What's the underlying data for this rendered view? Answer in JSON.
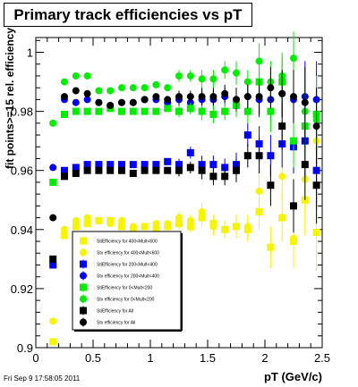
{
  "chart_data": {
    "type": "scatter",
    "title": "Primary track efficiencies vs pT",
    "xlabel": "pT (GeV/c)",
    "ylabel": "fit points>=15 rel. efficiency",
    "xlim": [
      0,
      2.5
    ],
    "ylim": [
      0.9,
      1.005
    ],
    "x_ticks": [
      0,
      0.5,
      1,
      1.5,
      2,
      2.5
    ],
    "y_ticks": [
      0.9,
      0.92,
      0.94,
      0.96,
      0.98,
      1
    ],
    "x_tick_labels": [
      "0",
      "0.5",
      "1",
      "1.5",
      "2",
      "2.5"
    ],
    "y_tick_labels": [
      "0.9",
      "0.92",
      "0.94",
      "0.96",
      "0.98",
      "1"
    ],
    "legend_position": "bottom-left",
    "grid": false,
    "footer": "Fri Sep  9 17:58:05 2011",
    "series": [
      {
        "name": "StiEfficiency for 400<Mult<600",
        "color": "#f5f500",
        "marker": "square",
        "x": [
          0.15,
          0.25,
          0.35,
          0.45,
          0.55,
          0.65,
          0.75,
          0.85,
          0.95,
          1.05,
          1.15,
          1.25,
          1.35,
          1.45,
          1.55,
          1.65,
          1.75,
          1.85,
          1.95,
          2.05,
          2.15,
          2.25,
          2.35,
          2.45
        ],
        "y": [
          0.902,
          0.938,
          0.941,
          0.942,
          0.943,
          0.943,
          0.941,
          0.94,
          0.941,
          0.94,
          0.941,
          0.942,
          0.941,
          0.944,
          0.942,
          0.94,
          0.941,
          0.94,
          0.946,
          0.934,
          0.944,
          0.936,
          0.95,
          0.939
        ],
        "err": [
          0,
          0,
          0,
          0,
          0,
          0,
          0,
          0,
          0,
          0,
          0,
          0.002,
          0.002,
          0.003,
          0.003,
          0.003,
          0.004,
          0.004,
          0.006,
          0.007,
          0.008,
          0.009,
          0.012,
          0.013
        ]
      },
      {
        "name": "Stv efficiency for 400<Mult<600",
        "color": "#f5f500",
        "marker": "circle",
        "x": [
          0.15,
          0.25,
          0.35,
          0.45,
          0.55,
          0.65,
          0.75,
          0.85,
          0.95,
          1.05,
          1.15,
          1.25,
          1.35,
          1.45,
          1.55,
          1.65,
          1.75,
          1.85,
          1.95,
          2.05,
          2.15,
          2.25,
          2.35,
          2.45
        ],
        "y": [
          0.909,
          0.94,
          0.943,
          0.944,
          0.943,
          0.942,
          0.943,
          0.941,
          0.941,
          0.942,
          0.942,
          0.944,
          0.943,
          0.946,
          0.941,
          0.94,
          0.941,
          0.941,
          0.953,
          0.955,
          0.958,
          0.937,
          0.957,
          0.97
        ],
        "err": [
          0,
          0,
          0,
          0,
          0,
          0,
          0,
          0,
          0,
          0,
          0,
          0.002,
          0.002,
          0.003,
          0.003,
          0.003,
          0.004,
          0.004,
          0.006,
          0.007,
          0.008,
          0.009,
          0.012,
          0.013
        ]
      },
      {
        "name": "StiEfficiency for 200<Mult<400",
        "color": "#0000ff",
        "marker": "square",
        "x": [
          0.15,
          0.25,
          0.35,
          0.45,
          0.55,
          0.65,
          0.75,
          0.85,
          0.95,
          1.05,
          1.15,
          1.25,
          1.35,
          1.45,
          1.55,
          1.65,
          1.75,
          1.85,
          1.95,
          2.05,
          2.15,
          2.25,
          2.35,
          2.45
        ],
        "y": [
          0.928,
          0.96,
          0.961,
          0.962,
          0.962,
          0.962,
          0.962,
          0.962,
          0.962,
          0.962,
          0.963,
          0.962,
          0.966,
          0.962,
          0.962,
          0.961,
          0.962,
          0.972,
          0.969,
          0.965,
          0.969,
          0.968,
          0.97,
          0.96
        ],
        "err": [
          0,
          0,
          0,
          0,
          0,
          0,
          0,
          0,
          0,
          0,
          0,
          0.002,
          0.002,
          0.003,
          0.003,
          0.003,
          0.004,
          0.004,
          0.006,
          0.007,
          0.008,
          0.009,
          0.012,
          0.013
        ]
      },
      {
        "name": "Stv efficiency for 200<Mult<400",
        "color": "#0000ff",
        "marker": "circle",
        "x": [
          0.15,
          0.25,
          0.35,
          0.45,
          0.55,
          0.65,
          0.75,
          0.85,
          0.95,
          1.05,
          1.15,
          1.25,
          1.35,
          1.45,
          1.55,
          1.65,
          1.75,
          1.85,
          1.95,
          2.05,
          2.15,
          2.25,
          2.35,
          2.45
        ],
        "y": [
          0.961,
          0.984,
          0.983,
          0.984,
          0.983,
          0.982,
          0.983,
          0.983,
          0.984,
          0.984,
          0.983,
          0.984,
          0.983,
          0.984,
          0.984,
          0.985,
          0.984,
          0.985,
          0.984,
          0.984,
          0.986,
          0.984,
          0.985,
          0.984
        ],
        "err": [
          0,
          0,
          0,
          0,
          0,
          0,
          0,
          0,
          0,
          0,
          0,
          0.002,
          0.002,
          0.003,
          0.003,
          0.003,
          0.004,
          0.004,
          0.006,
          0.007,
          0.008,
          0.009,
          0.012,
          0.013
        ]
      },
      {
        "name": "StiEfficiency for 0<Mult<200",
        "color": "#00ee00",
        "marker": "square",
        "x": [
          0.15,
          0.25,
          0.35,
          0.45,
          0.55,
          0.65,
          0.75,
          0.85,
          0.95,
          1.05,
          1.15,
          1.25,
          1.35,
          1.45,
          1.55,
          1.65,
          1.75,
          1.85,
          1.95,
          2.05,
          2.15,
          2.25,
          2.35,
          2.45
        ],
        "y": [
          0.956,
          0.979,
          0.98,
          0.98,
          0.98,
          0.981,
          0.98,
          0.98,
          0.98,
          0.98,
          0.981,
          0.98,
          0.981,
          0.98,
          0.979,
          0.98,
          0.982,
          0.98,
          0.99,
          0.98,
          0.99,
          0.97,
          0.975,
          0.979
        ],
        "err": [
          0,
          0,
          0,
          0,
          0,
          0,
          0,
          0,
          0,
          0,
          0,
          0.002,
          0.002,
          0.003,
          0.003,
          0.003,
          0.004,
          0.004,
          0.006,
          0.007,
          0.008,
          0.009,
          0.012,
          0.013
        ]
      },
      {
        "name": "Stv efficiency for 0<Mult<200",
        "color": "#00ee00",
        "marker": "circle",
        "x": [
          0.15,
          0.25,
          0.35,
          0.45,
          0.55,
          0.65,
          0.75,
          0.85,
          0.95,
          1.05,
          1.15,
          1.25,
          1.35,
          1.45,
          1.55,
          1.65,
          1.75,
          1.85,
          1.95,
          2.05,
          2.15,
          2.25,
          2.35,
          2.45
        ],
        "y": [
          0.976,
          0.99,
          0.992,
          0.992,
          0.987,
          0.987,
          0.988,
          0.988,
          0.988,
          0.989,
          0.988,
          0.992,
          0.992,
          0.991,
          0.991,
          0.994,
          0.993,
          0.99,
          0.997,
          0.99,
          0.992,
          0.998,
          0.98,
          0.977
        ],
        "err": [
          0,
          0,
          0,
          0,
          0,
          0,
          0,
          0,
          0,
          0,
          0,
          0.002,
          0.002,
          0.003,
          0.003,
          0.003,
          0.004,
          0.004,
          0.006,
          0.007,
          0.008,
          0.009,
          0.012,
          0.013
        ]
      },
      {
        "name": "StiEfficiency for All",
        "color": "#000000",
        "marker": "square",
        "x": [
          0.15,
          0.25,
          0.35,
          0.45,
          0.55,
          0.65,
          0.75,
          0.85,
          0.95,
          1.05,
          1.15,
          1.25,
          1.35,
          1.45,
          1.55,
          1.65,
          1.75,
          1.85,
          1.95,
          2.05,
          2.15,
          2.25,
          2.35,
          2.45
        ],
        "y": [
          0.93,
          0.958,
          0.959,
          0.96,
          0.96,
          0.96,
          0.96,
          0.959,
          0.96,
          0.96,
          0.96,
          0.96,
          0.961,
          0.96,
          0.958,
          0.958,
          0.96,
          0.965,
          0.965,
          0.955,
          0.975,
          0.948,
          0.962,
          0.955
        ],
        "err": [
          0,
          0,
          0,
          0,
          0,
          0,
          0,
          0,
          0,
          0,
          0,
          0.002,
          0.002,
          0.003,
          0.003,
          0.003,
          0.004,
          0.004,
          0.006,
          0.007,
          0.008,
          0.009,
          0.012,
          0.013
        ]
      },
      {
        "name": "Stv efficiency for All",
        "color": "#000000",
        "marker": "circle",
        "x": [
          0.15,
          0.25,
          0.35,
          0.45,
          0.55,
          0.65,
          0.75,
          0.85,
          0.95,
          1.05,
          1.15,
          1.25,
          1.35,
          1.45,
          1.55,
          1.65,
          1.75,
          1.85,
          1.95,
          2.05,
          2.15,
          2.25,
          2.35,
          2.45
        ],
        "y": [
          0.944,
          0.985,
          0.987,
          0.986,
          0.983,
          0.982,
          0.983,
          0.983,
          0.984,
          0.985,
          0.984,
          0.985,
          0.985,
          0.985,
          0.985,
          0.986,
          0.984,
          0.985,
          0.985,
          0.988,
          0.986,
          0.985,
          0.983,
          0.975
        ],
        "err": [
          0,
          0,
          0,
          0,
          0,
          0,
          0,
          0,
          0,
          0,
          0,
          0.002,
          0.002,
          0.003,
          0.003,
          0.003,
          0.004,
          0.004,
          0.006,
          0.007,
          0.008,
          0.009,
          0.012,
          0.013
        ]
      }
    ]
  }
}
